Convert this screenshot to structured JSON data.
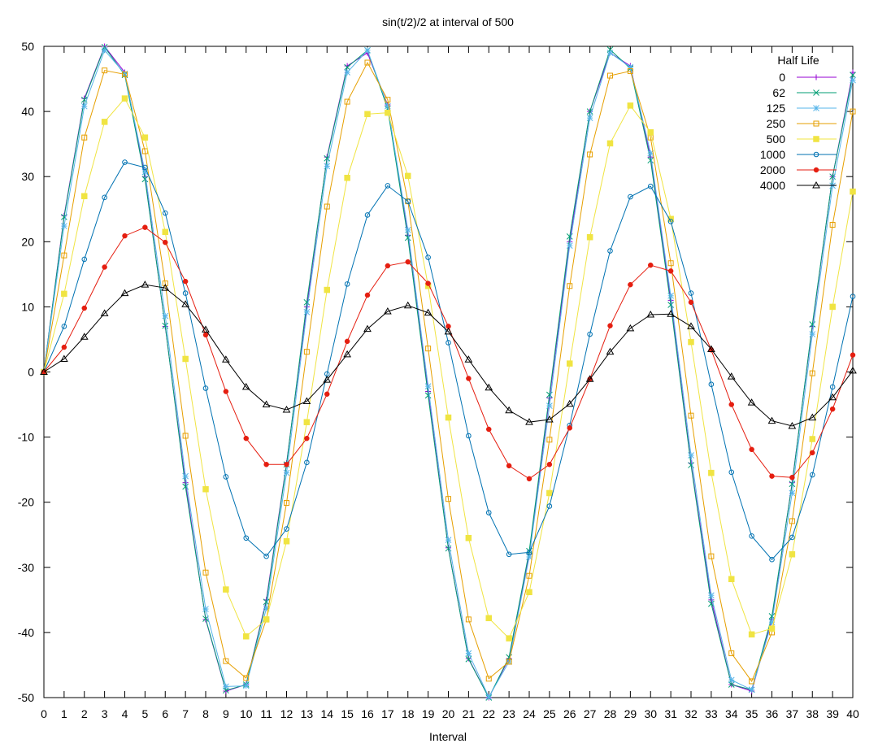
{
  "chart_data": {
    "type": "line",
    "title": "sin(t/2)/2 at interval of 500",
    "xlabel": "Interval",
    "ylabel": "",
    "xlim": [
      0,
      40
    ],
    "ylim": [
      -50,
      50
    ],
    "x_ticks": [
      0,
      1,
      2,
      3,
      4,
      5,
      6,
      7,
      8,
      9,
      10,
      11,
      12,
      13,
      14,
      15,
      16,
      17,
      18,
      19,
      20,
      21,
      22,
      23,
      24,
      25,
      26,
      27,
      28,
      29,
      30,
      31,
      32,
      33,
      34,
      35,
      36,
      37,
      38,
      39,
      40
    ],
    "y_ticks": [
      -50,
      -40,
      -30,
      -20,
      -10,
      0,
      10,
      20,
      30,
      40,
      50
    ],
    "grid": false,
    "legend": {
      "title": "Half Life",
      "placement": "top-right"
    },
    "x": [
      0,
      1,
      2,
      3,
      4,
      5,
      6,
      7,
      8,
      9,
      10,
      11,
      12,
      13,
      14,
      15,
      16,
      17,
      18,
      19,
      20,
      21,
      22,
      23,
      24,
      25,
      26,
      27,
      28,
      29,
      30,
      31,
      32,
      33,
      34,
      35,
      36,
      37,
      38,
      39,
      40
    ],
    "series": [
      {
        "name": "0",
        "color": "#9400d3",
        "marker": "plus",
        "values": [
          0,
          24,
          42,
          50,
          46,
          30,
          7,
          -17,
          -38,
          -49,
          -48,
          -35,
          -14,
          10,
          33,
          47,
          49,
          41,
          21,
          -3,
          -27,
          -44,
          -50,
          -44,
          -28,
          -4,
          20,
          40,
          49,
          47,
          33,
          11,
          -14,
          -35,
          -48,
          -49,
          -38,
          -17,
          7,
          30,
          46
        ]
      },
      {
        "name": "62",
        "color": "#009e73",
        "marker": "x",
        "values": [
          0,
          23.8,
          41.8,
          49.9,
          45.6,
          29.6,
          7.1,
          -17.6,
          -37.9,
          -48.9,
          -48,
          -35.3,
          -14.2,
          10.7,
          32.8,
          46.8,
          49.4,
          40.4,
          20.6,
          -3.6,
          -27.1,
          -44.1,
          -50,
          -43.8,
          -27.5,
          -3.5,
          20.8,
          40,
          49.5,
          46.6,
          32.5,
          10.3,
          -14.3,
          -35.6,
          -48,
          -48.8,
          -37.5,
          -17.2,
          7.3,
          30,
          45.6
        ]
      },
      {
        "name": "125",
        "color": "#56b4e9",
        "marker": "star",
        "values": [
          0,
          22.4,
          40.8,
          49.4,
          45.8,
          30.7,
          8.6,
          -16,
          -36.4,
          -48.3,
          -48.2,
          -36.3,
          -15.5,
          9.2,
          31.6,
          46,
          49.4,
          40.8,
          21.8,
          -2.2,
          -25.8,
          -43.2,
          -49.9,
          -44.5,
          -28.4,
          -5.2,
          19.4,
          39,
          49,
          46.8,
          33.6,
          11.7,
          -12.8,
          -34.3,
          -47.3,
          -48.8,
          -38.4,
          -18.6,
          5.8,
          28.6,
          44.8
        ]
      },
      {
        "name": "250",
        "color": "#e69f00",
        "marker": "square-open",
        "values": [
          0,
          17.9,
          36,
          46.3,
          45.7,
          33.9,
          13.6,
          -9.8,
          -30.8,
          -44.4,
          -47,
          -38,
          -20.1,
          3.1,
          25.4,
          41.5,
          47.5,
          41.8,
          26.2,
          3.6,
          -19.5,
          -38,
          -47.1,
          -44.5,
          -31.3,
          -10.4,
          13.2,
          33.4,
          45.5,
          46.2,
          36,
          16.7,
          -6.7,
          -28.3,
          -43.2,
          -47.5,
          -40,
          -22.9,
          -0.2,
          22.6,
          40
        ]
      },
      {
        "name": "500",
        "color": "#f0e442",
        "marker": "square-filled",
        "values": [
          0,
          12,
          27,
          38.4,
          42,
          36,
          21.5,
          2,
          -18,
          -33.4,
          -40.6,
          -38,
          -26,
          -7.7,
          12.6,
          29.8,
          39.6,
          39.8,
          30.1,
          13.2,
          -7,
          -25.5,
          -37.8,
          -40.9,
          -33.8,
          -18.6,
          1.3,
          20.7,
          35.1,
          40.9,
          36.8,
          23.5,
          4.6,
          -15.5,
          -31.8,
          -40.3,
          -39.4,
          -28,
          -10.3,
          10,
          27.7
        ]
      },
      {
        "name": "1000",
        "color": "#0072b2",
        "marker": "circle-open",
        "values": [
          0,
          7,
          17.3,
          26.8,
          32.2,
          31.4,
          24.4,
          12.1,
          -2.5,
          -16.1,
          -25.5,
          -28.3,
          -24.1,
          -13.9,
          -0.3,
          13.5,
          24.1,
          28.6,
          26.2,
          17.6,
          4.5,
          -9.8,
          -21.6,
          -28,
          -27.7,
          -20.6,
          -8.2,
          5.8,
          18.6,
          26.9,
          28.5,
          23.1,
          12.1,
          -1.9,
          -15.4,
          -25.2,
          -28.8,
          -25.4,
          -15.8,
          -2.3,
          11.6
        ]
      },
      {
        "name": "2000",
        "color": "#e51e10",
        "marker": "circle-filled",
        "values": [
          0,
          3.8,
          9.8,
          16.1,
          20.9,
          22.2,
          19.9,
          13.9,
          5.7,
          -3,
          -10.2,
          -14.2,
          -14.2,
          -10.2,
          -3.4,
          4.7,
          11.8,
          16.3,
          16.9,
          13.6,
          7,
          -1,
          -8.8,
          -14.4,
          -16.4,
          -14.2,
          -8.6,
          -1.1,
          7.1,
          13.4,
          16.4,
          15.5,
          10.7,
          3.4,
          -5,
          -11.9,
          -16,
          -16.2,
          -12.4,
          -5.7,
          2.6
        ]
      },
      {
        "name": "4000",
        "color": "#000000",
        "marker": "triangle-open",
        "values": [
          0,
          2,
          5.4,
          9,
          12.1,
          13.4,
          12.9,
          10.4,
          6.5,
          1.9,
          -2.3,
          -5,
          -5.8,
          -4.5,
          -1.2,
          2.7,
          6.6,
          9.3,
          10.2,
          9.1,
          6.2,
          1.9,
          -2.4,
          -5.9,
          -7.7,
          -7.3,
          -4.9,
          -1.1,
          3.1,
          6.7,
          8.8,
          8.9,
          7,
          3.5,
          -0.7,
          -4.7,
          -7.5,
          -8.3,
          -7,
          -3.9,
          0.2
        ]
      }
    ]
  }
}
